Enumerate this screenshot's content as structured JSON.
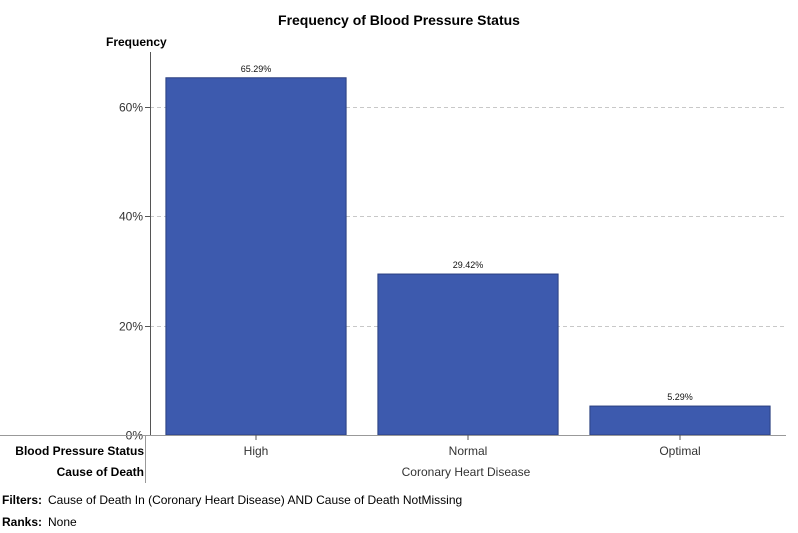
{
  "chart_data": {
    "type": "bar",
    "title": "Frequency of Blood Pressure Status",
    "ylabel": "Frequency",
    "xlabel": "Blood Pressure Status",
    "categories": [
      "High",
      "Normal",
      "Optimal"
    ],
    "values": [
      65.29,
      29.42,
      5.29
    ],
    "value_labels": [
      "65.29%",
      "29.42%",
      "5.29%"
    ],
    "y_ticks": [
      0,
      20,
      40,
      60
    ],
    "y_tick_labels": [
      "0%",
      "20%",
      "40%",
      "60%"
    ],
    "ylim": [
      0,
      70
    ],
    "grid": "horizontal dashed",
    "bar_color": "#3d5aae",
    "group_row": {
      "label": "Cause of Death",
      "value": "Coronary Heart Disease"
    }
  },
  "footer": {
    "filters_label": "Filters:",
    "filters_value": "Cause of Death In (Coronary Heart Disease) AND Cause of Death NotMissing",
    "ranks_label": "Ranks:",
    "ranks_value": "None"
  }
}
